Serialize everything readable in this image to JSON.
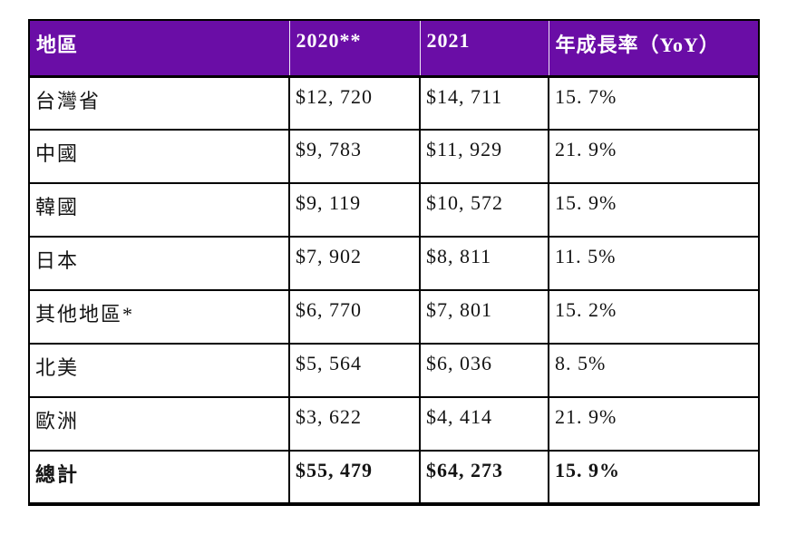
{
  "colors": {
    "header_bg": "#6A0DA6",
    "header_text": "#ffffff",
    "border": "#000000",
    "cell_text": "#141414",
    "page_bg": "#ffffff"
  },
  "table": {
    "columns": [
      {
        "label": "地區"
      },
      {
        "label": "2020**"
      },
      {
        "label": "2021"
      },
      {
        "label": "年成長率（YoY）"
      }
    ],
    "rows": [
      {
        "region": "台灣省",
        "y2020": "$12, 720",
        "y2021": "$14, 711",
        "yoy": "15. 7%"
      },
      {
        "region": "中國",
        "y2020": "$9, 783",
        "y2021": "$11, 929",
        "yoy": "21. 9%"
      },
      {
        "region": "韓國",
        "y2020": "$9, 119",
        "y2021": "$10, 572",
        "yoy": "15. 9%"
      },
      {
        "region": "日本",
        "y2020": "$7, 902",
        "y2021": "$8, 811",
        "yoy": "11. 5%"
      },
      {
        "region": "其他地區*",
        "y2020": "$6, 770",
        "y2021": "$7, 801",
        "yoy": "15. 2%"
      },
      {
        "region": "北美",
        "y2020": "$5, 564",
        "y2021": "$6, 036",
        "yoy": "8. 5%"
      },
      {
        "region": "歐洲",
        "y2020": "$3, 622",
        "y2021": "$4, 414",
        "yoy": "21. 9%"
      }
    ],
    "total_row": {
      "region": "總計",
      "y2020": "$55, 479",
      "y2021": "$64, 273",
      "yoy": "15. 9%"
    }
  }
}
